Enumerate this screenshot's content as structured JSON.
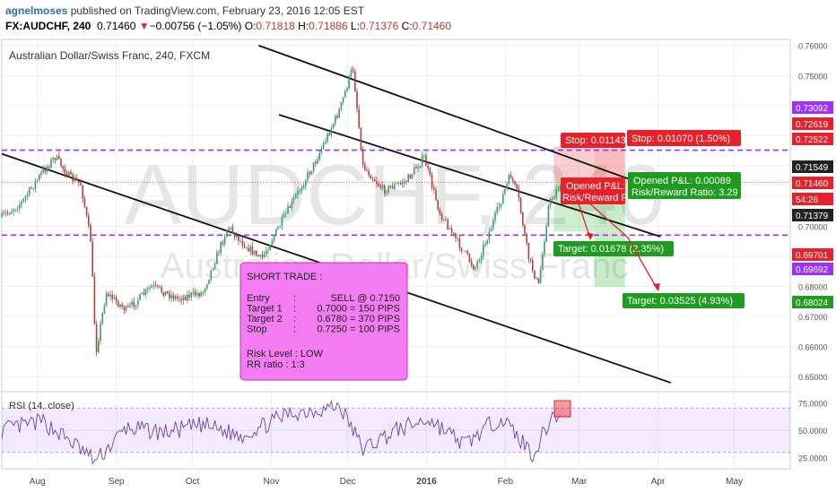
{
  "header": {
    "author": "agnelmoses",
    "published_text": " published on TradingView.com, February 23, 2016 12:05 EST",
    "symbol": "FX:AUDCHF, 240",
    "last": "0.71460",
    "change": "−0.00756 (−1.05%)",
    "open_label": "O:",
    "open": "0.71818",
    "high_label": "H:",
    "high": "0.71886",
    "low_label": "L:",
    "low": "0.71376",
    "close_label": "C:",
    "close": "0.71460"
  },
  "chart_data": {
    "type": "candlestick",
    "title": "Australian Dollar/Swiss Franc, 240, FXCM",
    "watermark_symbol": "AUDCHF, 240",
    "watermark_name": "Australian Dollar/Swiss Franc",
    "ylim": [
      0.645,
      0.762
    ],
    "y_ticks": [
      "0.76000",
      "0.75000",
      "0.74000",
      "0.73000",
      "0.72000",
      "0.71000",
      "0.70000",
      "0.69000",
      "0.68000",
      "0.67000",
      "0.66000",
      "0.65000"
    ],
    "x_ticks": [
      "Aug",
      "Sep",
      "Oct",
      "Nov",
      "Dec",
      "2016",
      "Feb",
      "Mar",
      "Apr",
      "May"
    ],
    "price_path": [
      {
        "date": "2015-07-18",
        "price": 0.703
      },
      {
        "date": "2015-07-26",
        "price": 0.708
      },
      {
        "date": "2015-08-03",
        "price": 0.718
      },
      {
        "date": "2015-08-08",
        "price": 0.723
      },
      {
        "date": "2015-08-14",
        "price": 0.716
      },
      {
        "date": "2015-08-18",
        "price": 0.714
      },
      {
        "date": "2015-08-22",
        "price": 0.695
      },
      {
        "date": "2015-08-24",
        "price": 0.658
      },
      {
        "date": "2015-08-28",
        "price": 0.678
      },
      {
        "date": "2015-09-05",
        "price": 0.672
      },
      {
        "date": "2015-09-15",
        "price": 0.68
      },
      {
        "date": "2015-09-25",
        "price": 0.676
      },
      {
        "date": "2015-10-05",
        "price": 0.678
      },
      {
        "date": "2015-10-15",
        "price": 0.7
      },
      {
        "date": "2015-10-20",
        "price": 0.695
      },
      {
        "date": "2015-10-28",
        "price": 0.689
      },
      {
        "date": "2015-11-08",
        "price": 0.706
      },
      {
        "date": "2015-11-18",
        "price": 0.721
      },
      {
        "date": "2015-11-28",
        "price": 0.739
      },
      {
        "date": "2015-12-03",
        "price": 0.753
      },
      {
        "date": "2015-12-07",
        "price": 0.72
      },
      {
        "date": "2015-12-15",
        "price": 0.712
      },
      {
        "date": "2015-12-24",
        "price": 0.715
      },
      {
        "date": "2015-12-31",
        "price": 0.723
      },
      {
        "date": "2016-01-06",
        "price": 0.705
      },
      {
        "date": "2016-01-13",
        "price": 0.695
      },
      {
        "date": "2016-01-20",
        "price": 0.686
      },
      {
        "date": "2016-01-27",
        "price": 0.701
      },
      {
        "date": "2016-02-03",
        "price": 0.717
      },
      {
        "date": "2016-02-06",
        "price": 0.71
      },
      {
        "date": "2016-02-10",
        "price": 0.69
      },
      {
        "date": "2016-02-14",
        "price": 0.68
      },
      {
        "date": "2016-02-18",
        "price": 0.707
      },
      {
        "date": "2016-02-23",
        "price": 0.7146
      }
    ],
    "support_level": 0.697,
    "resistance_level": 0.7252,
    "channel_upper": [
      {
        "date": "2015-10-27",
        "price": 0.76
      },
      {
        "date": "2016-03-26",
        "price": 0.714
      }
    ],
    "channel_middle": [
      {
        "date": "2015-11-04",
        "price": 0.737
      },
      {
        "date": "2016-04-02",
        "price": 0.6965
      }
    ],
    "channel_lower": [
      {
        "date": "2015-07-18",
        "price": 0.724
      },
      {
        "date": "2016-04-06",
        "price": 0.648
      }
    ],
    "price_labels": [
      {
        "text": "0.73092",
        "bg": "#9b30ff"
      },
      {
        "text": "0.72619",
        "bg": "#e8202a"
      },
      {
        "text": "0.72522",
        "bg": "#e8202a"
      },
      {
        "text": "0.71549",
        "bg": "#222222"
      },
      {
        "text": "0.71460",
        "bg": "#e8202a"
      },
      {
        "text": "54:26",
        "bg": "#e8202a"
      },
      {
        "text": "0.71379",
        "bg": "#222222"
      },
      {
        "text": "0.69701",
        "bg": "#e8202a"
      },
      {
        "text": "0.69692",
        "bg": "#9b30ff"
      },
      {
        "text": "0.68024",
        "bg": "#1f9c1f"
      }
    ],
    "short_position_1": {
      "stop": "Stop: 0.01143",
      "opened": "Opened P&L: ",
      "risk_reward": "Risk/Reward Ra",
      "target": "Target: 0.01678 (2.35%)",
      "entry": 0.715,
      "stop_price": 0.7264,
      "target_price": 0.6982
    },
    "short_position_2": {
      "stop": "Stop: 0.01070 (1.50%)",
      "opened": "Opened P&L: 0.00089",
      "risk_reward": "Risk/Reward Ratio: 3.29",
      "target": "Target: 0.03525 (4.93%)",
      "entry": 0.715,
      "stop_price": 0.7257,
      "target_price": 0.6798
    },
    "note": {
      "title": "SHORT TRADE :",
      "rows": [
        {
          "k": "Entry",
          "sep": ":",
          "v": "SELL @ 0.7150"
        },
        {
          "k": "Target 1",
          "sep": ":",
          "v": "0.7000 = 150 PIPS"
        },
        {
          "k": "Target 2",
          "sep": ":",
          "v": "0.6780 = 370 PIPS"
        },
        {
          "k": "Stop",
          "sep": ":",
          "v": "0.7250 = 100 PIPS"
        }
      ],
      "risk": "Risk Level : LOW",
      "rr": "RR ratio : 1:3"
    },
    "rsi": {
      "label": "RSI (14, close)",
      "ylim": [
        15,
        85
      ],
      "y_ticks": [
        "75.0000",
        "50.0000",
        "25.0000"
      ],
      "upper_band": 70,
      "lower_band": 30,
      "path": [
        {
          "date": "2015-07-18",
          "value": 50
        },
        {
          "date": "2015-08-03",
          "value": 58
        },
        {
          "date": "2015-08-14",
          "value": 40
        },
        {
          "date": "2015-08-24",
          "value": 22
        },
        {
          "date": "2015-09-05",
          "value": 52
        },
        {
          "date": "2015-09-20",
          "value": 48
        },
        {
          "date": "2015-10-05",
          "value": 55
        },
        {
          "date": "2015-10-20",
          "value": 45
        },
        {
          "date": "2015-11-08",
          "value": 65
        },
        {
          "date": "2015-11-28",
          "value": 72
        },
        {
          "date": "2015-12-07",
          "value": 33
        },
        {
          "date": "2015-12-20",
          "value": 50
        },
        {
          "date": "2016-01-02",
          "value": 60
        },
        {
          "date": "2016-01-16",
          "value": 37
        },
        {
          "date": "2016-01-30",
          "value": 62
        },
        {
          "date": "2016-02-12",
          "value": 28
        },
        {
          "date": "2016-02-20",
          "value": 66
        },
        {
          "date": "2016-02-23",
          "value": 58
        }
      ]
    }
  }
}
